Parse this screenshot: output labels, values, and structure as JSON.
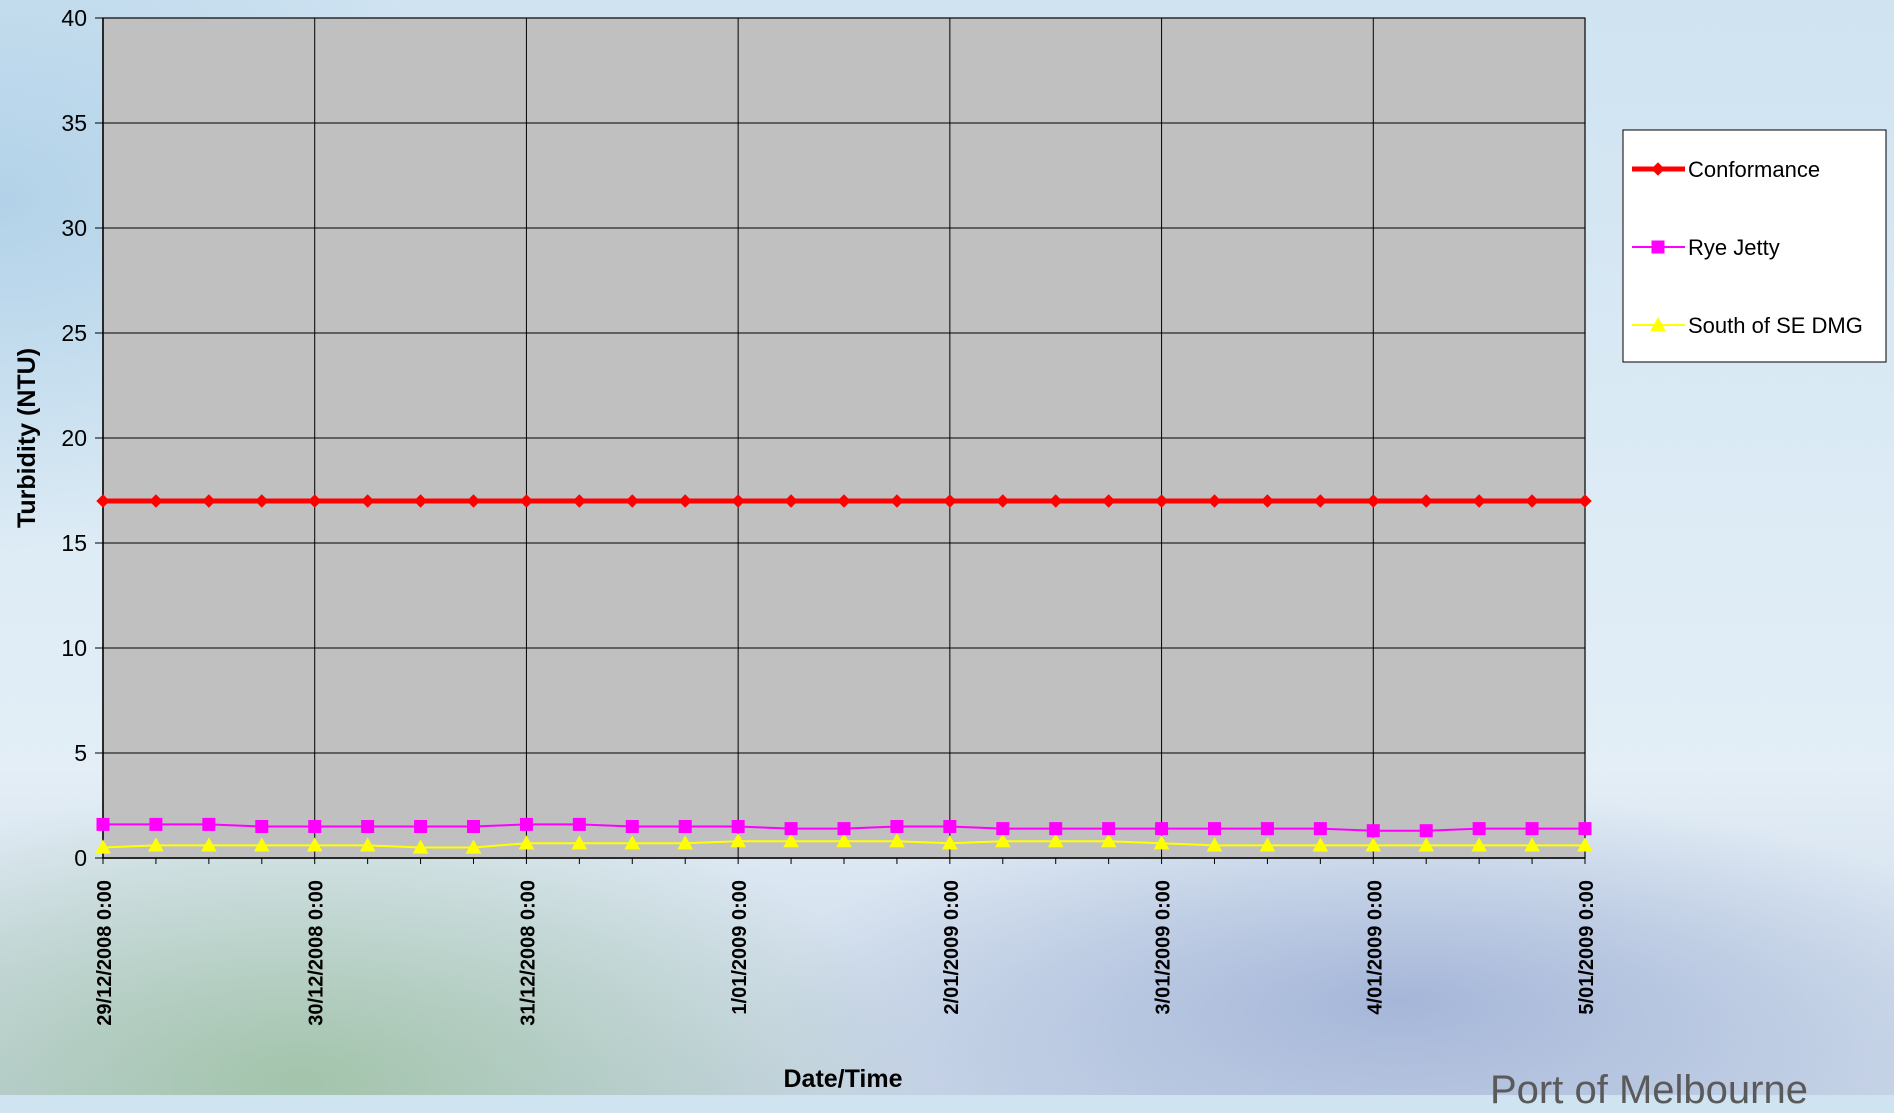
{
  "chart_data": {
    "type": "line",
    "xlabel": "Date/Time",
    "ylabel": "Turbidity (NTU)",
    "ylim": [
      0,
      40
    ],
    "yticks": [
      0,
      5,
      10,
      15,
      20,
      25,
      30,
      35,
      40
    ],
    "grid": true,
    "legend_position": "right",
    "x_tick_labels": [
      "29/12/2008 0:00",
      "30/12/2008 0:00",
      "31/12/2008 0:00",
      "1/01/2009 0:00",
      "2/01/2009 0:00",
      "3/01/2009 0:00",
      "4/01/2009 0:00",
      "5/01/2009 0:00"
    ],
    "x": [
      "29/12/2008 0:00",
      "29/12/2008 6:00",
      "29/12/2008 12:00",
      "29/12/2008 18:00",
      "30/12/2008 0:00",
      "30/12/2008 6:00",
      "30/12/2008 12:00",
      "30/12/2008 18:00",
      "31/12/2008 0:00",
      "31/12/2008 6:00",
      "31/12/2008 12:00",
      "31/12/2008 18:00",
      "1/01/2009 0:00",
      "1/01/2009 6:00",
      "1/01/2009 12:00",
      "1/01/2009 18:00",
      "2/01/2009 0:00",
      "2/01/2009 6:00",
      "2/01/2009 12:00",
      "2/01/2009 18:00",
      "3/01/2009 0:00",
      "3/01/2009 6:00",
      "3/01/2009 12:00",
      "3/01/2009 18:00",
      "4/01/2009 0:00",
      "4/01/2009 6:00",
      "4/01/2009 12:00",
      "4/01/2009 18:00",
      "5/01/2009 0:00"
    ],
    "series": [
      {
        "name": "Conformance",
        "color": "#ff0000",
        "marker": "diamond",
        "values": [
          17,
          17,
          17,
          17,
          17,
          17,
          17,
          17,
          17,
          17,
          17,
          17,
          17,
          17,
          17,
          17,
          17,
          17,
          17,
          17,
          17,
          17,
          17,
          17,
          17,
          17,
          17,
          17,
          17
        ]
      },
      {
        "name": "Rye Jetty",
        "color": "#ff00ff",
        "marker": "square",
        "values": [
          1.6,
          1.6,
          1.6,
          1.5,
          1.5,
          1.5,
          1.5,
          1.5,
          1.6,
          1.6,
          1.5,
          1.5,
          1.5,
          1.4,
          1.4,
          1.5,
          1.5,
          1.4,
          1.4,
          1.4,
          1.4,
          1.4,
          1.4,
          1.4,
          1.3,
          1.3,
          1.4,
          1.4,
          1.4
        ]
      },
      {
        "name": "South of SE DMG",
        "color": "#ffff00",
        "marker": "triangle",
        "values": [
          0.5,
          0.6,
          0.6,
          0.6,
          0.6,
          0.6,
          0.5,
          0.5,
          0.7,
          0.7,
          0.7,
          0.7,
          0.8,
          0.8,
          0.8,
          0.8,
          0.7,
          0.8,
          0.8,
          0.8,
          0.7,
          0.6,
          0.6,
          0.6,
          0.6,
          0.6,
          0.6,
          0.6,
          0.6
        ]
      }
    ]
  },
  "watermark": "Port of Melbourne"
}
